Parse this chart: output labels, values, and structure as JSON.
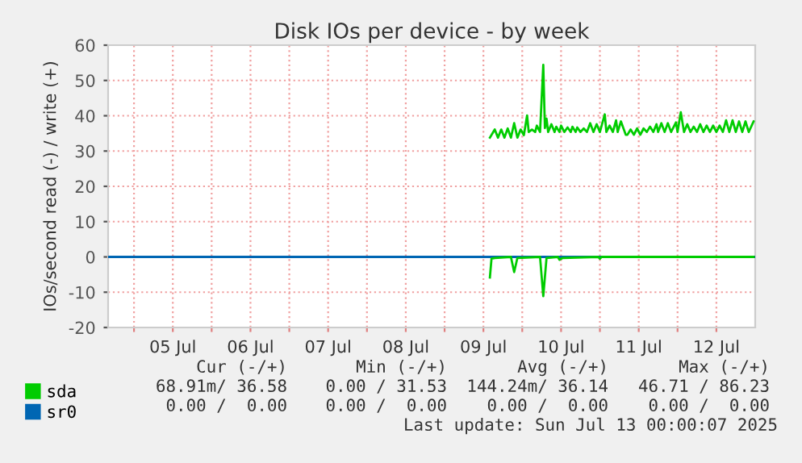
{
  "chart_data": {
    "type": "line",
    "title": "Disk IOs per device - by week",
    "ylabel": "IOs/second read (-) / write (+)",
    "xlim": [
      "2025-07-04T16:00",
      "2025-07-13T00:00"
    ],
    "xticks": [
      {
        "value": "2025-07-05T00:00",
        "label": null
      },
      {
        "value": "2025-07-05T12:00",
        "label": "05 Jul"
      },
      {
        "value": "2025-07-06T00:00",
        "label": null
      },
      {
        "value": "2025-07-06T12:00",
        "label": "06 Jul"
      },
      {
        "value": "2025-07-07T00:00",
        "label": null
      },
      {
        "value": "2025-07-07T12:00",
        "label": "07 Jul"
      },
      {
        "value": "2025-07-08T00:00",
        "label": null
      },
      {
        "value": "2025-07-08T12:00",
        "label": "08 Jul"
      },
      {
        "value": "2025-07-09T00:00",
        "label": null
      },
      {
        "value": "2025-07-09T12:00",
        "label": "09 Jul"
      },
      {
        "value": "2025-07-10T00:00",
        "label": null
      },
      {
        "value": "2025-07-10T12:00",
        "label": "10 Jul"
      },
      {
        "value": "2025-07-11T00:00",
        "label": null
      },
      {
        "value": "2025-07-11T12:00",
        "label": "11 Jul"
      },
      {
        "value": "2025-07-12T00:00",
        "label": null
      },
      {
        "value": "2025-07-12T12:00",
        "label": "12 Jul"
      }
    ],
    "ylim": [
      -20,
      60
    ],
    "yticks": [
      -20,
      -10,
      0,
      10,
      20,
      30,
      40,
      50,
      60
    ],
    "grid": true,
    "legend": "bottom left",
    "series": [
      {
        "name": "sda",
        "color": "#00cc00",
        "x": [
          "2025-07-09T14:00",
          "2025-07-09T15:30",
          "2025-07-09T16:30",
          "2025-07-09T17:30",
          "2025-07-09T18:30",
          "2025-07-09T19:30",
          "2025-07-09T20:30",
          "2025-07-09T21:30",
          "2025-07-09T22:30",
          "2025-07-09T23:30",
          "2025-07-10T00:30",
          "2025-07-10T01:30",
          "2025-07-10T02:00",
          "2025-07-10T03:00",
          "2025-07-10T04:00",
          "2025-07-10T04:30",
          "2025-07-10T05:30",
          "2025-07-10T06:30",
          "2025-07-10T07:00",
          "2025-07-10T07:30",
          "2025-07-10T08:00",
          "2025-07-10T09:00",
          "2025-07-10T10:00",
          "2025-07-10T10:30",
          "2025-07-10T11:30",
          "2025-07-10T12:00",
          "2025-07-10T13:00",
          "2025-07-10T14:00",
          "2025-07-10T15:00",
          "2025-07-10T15:30",
          "2025-07-10T16:30",
          "2025-07-10T17:00",
          "2025-07-10T18:00",
          "2025-07-10T19:00",
          "2025-07-10T20:00",
          "2025-07-10T21:00",
          "2025-07-10T22:00",
          "2025-07-10T23:00",
          "2025-07-11T00:00",
          "2025-07-11T01:30",
          "2025-07-11T02:00",
          "2025-07-11T03:00",
          "2025-07-11T04:00",
          "2025-07-11T05:00",
          "2025-07-11T05:30",
          "2025-07-11T06:30",
          "2025-07-11T08:00",
          "2025-07-11T08:30",
          "2025-07-11T09:30",
          "2025-07-11T10:30",
          "2025-07-11T11:30",
          "2025-07-11T12:30",
          "2025-07-11T13:30",
          "2025-07-11T14:30",
          "2025-07-11T15:30",
          "2025-07-11T16:30",
          "2025-07-11T17:30",
          "2025-07-11T18:00",
          "2025-07-11T19:00",
          "2025-07-11T20:00",
          "2025-07-11T21:00",
          "2025-07-11T22:00",
          "2025-07-11T23:30",
          "2025-07-12T00:00",
          "2025-07-12T01:00",
          "2025-07-12T02:00",
          "2025-07-12T03:00",
          "2025-07-12T04:00",
          "2025-07-12T05:00",
          "2025-07-12T06:00",
          "2025-07-12T07:00",
          "2025-07-12T08:00",
          "2025-07-12T09:00",
          "2025-07-12T10:00",
          "2025-07-12T11:00",
          "2025-07-12T12:00",
          "2025-07-12T13:00",
          "2025-07-12T14:00",
          "2025-07-12T15:00",
          "2025-07-12T16:00",
          "2025-07-12T17:00",
          "2025-07-12T18:00",
          "2025-07-12T19:00",
          "2025-07-12T20:00",
          "2025-07-12T21:00",
          "2025-07-12T22:00",
          "2025-07-12T23:30"
        ],
        "values": [
          33.8,
          36.1,
          33.8,
          36.1,
          33.8,
          36.4,
          33.8,
          37.9,
          33.8,
          36.1,
          34.5,
          40.1,
          35.4,
          36.1,
          35.4,
          37.2,
          35.4,
          54.4,
          36.5,
          39.2,
          35.4,
          37.6,
          35.4,
          36.9,
          35.4,
          37.2,
          35.4,
          36.7,
          35.4,
          36.9,
          35.4,
          36.7,
          35.4,
          36.4,
          35.4,
          37.9,
          35.4,
          37.6,
          35.4,
          40.4,
          35.4,
          37.2,
          35.4,
          38.7,
          35.4,
          38.4,
          34.6,
          34.6,
          36.1,
          34.6,
          36.4,
          34.6,
          36.4,
          35.4,
          36.9,
          35.4,
          37.6,
          35.4,
          37.9,
          35.4,
          37.9,
          35.4,
          38.1,
          35.4,
          41.0,
          35.4,
          37.6,
          35.4,
          36.9,
          35.4,
          37.6,
          35.4,
          37.2,
          35.4,
          37.2,
          35.4,
          37.2,
          35.4,
          38.7,
          35.4,
          38.7,
          35.4,
          38.4,
          35.4,
          38.4,
          35.4,
          38.4
        ]
      },
      {
        "color": "#00cc00",
        "x": [
          "2025-07-09T14:00",
          "2025-07-09T14:30",
          "2025-07-09T15:30",
          "2025-07-09T20:30",
          "2025-07-09T21:30",
          "2025-07-09T22:30",
          "2025-07-10T05:30",
          "2025-07-10T06:30",
          "2025-07-10T07:30",
          "2025-07-10T11:00",
          "2025-07-10T11:30",
          "2025-07-10T12:30",
          "2025-07-10T23:30",
          "2025-07-11T00:00",
          "2025-07-11T00:30",
          "2025-07-12T23:30"
        ],
        "values": [
          -5.8,
          -0.5,
          -0.3,
          0,
          -4.3,
          -0.3,
          0,
          -11.1,
          -0.3,
          0,
          -0.8,
          -0.3,
          0,
          -0.5,
          0,
          0
        ]
      },
      {
        "name": "sr0",
        "color": "#0066b3",
        "x": [
          "2025-07-04T16:00",
          "2025-07-13T00:00"
        ],
        "values": [
          0,
          0
        ]
      }
    ],
    "annotations": [
      "Cur (-/+)",
      "Min (-/+)",
      "Avg (-/+)",
      "Max (-/+)",
      "68.91m/ 36.58",
      "0.00 / 31.53",
      "144.24m/ 36.14",
      "46.71 / 86.23",
      "0.00 /  0.00",
      "0.00 /  0.00",
      "0.00 /  0.00",
      "0.00 /  0.00",
      "Last update: Sun Jul 13 00:00:07 2025"
    ]
  }
}
